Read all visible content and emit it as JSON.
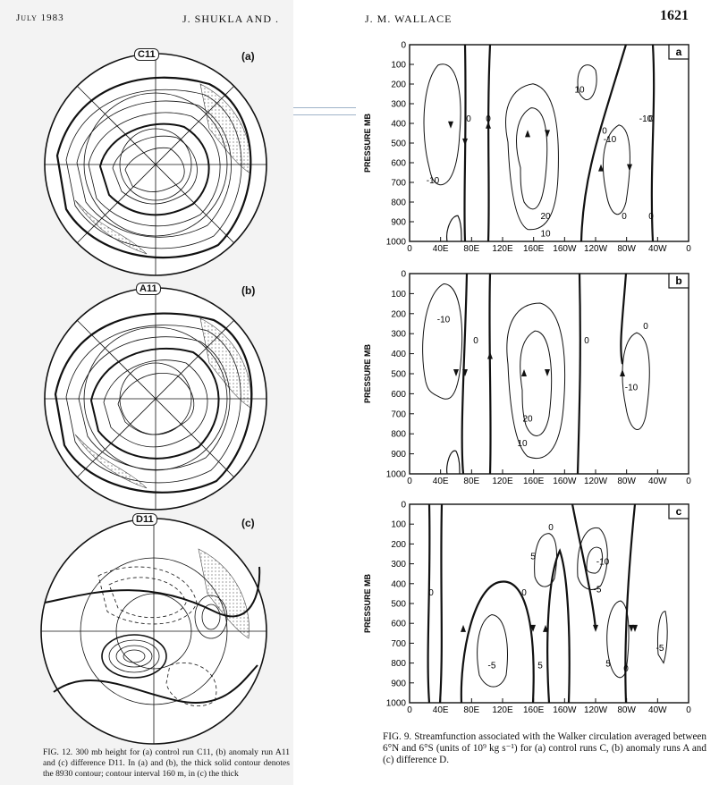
{
  "header": {
    "left_month": "July 1983",
    "left_authors": "J. SHUKLA AND .",
    "right_authors": "J. M. WALLACE",
    "page_number": "1621"
  },
  "maps": [
    {
      "panel": "(a)",
      "label": "C11"
    },
    {
      "panel": "(b)",
      "label": "A11"
    },
    {
      "panel": "(c)",
      "label": "D11"
    }
  ],
  "caption_left": "FIG. 12. 300 mb height for (a) control run C11, (b) anomaly run A11 and (c) difference D11. In (a) and (b), the thick solid contour denotes the 8930 contour; contour interval 160 m, in (c) the thick",
  "caption_right": "FIG. 9. Streamfunction associated with the Walker circulation averaged between 6°N and 6°S (units of 10⁹ kg s⁻¹) for (a) control runs C, (b) anomaly runs A and (c) difference D.",
  "chart_data": [
    {
      "type": "contour",
      "panel": "a",
      "ylabel": "PRESSURE MB",
      "x_ticks": [
        "0",
        "40E",
        "80E",
        "120E",
        "160E",
        "160W",
        "120W",
        "80W",
        "40W",
        "0"
      ],
      "y_ticks": [
        "0",
        "100",
        "200",
        "300",
        "400",
        "500",
        "600",
        "700",
        "800",
        "900",
        "1000"
      ],
      "contour_labels": [
        "0",
        "-10",
        "0",
        "20",
        "10",
        "10",
        "0",
        "-10",
        "0",
        "-10",
        "0",
        "0"
      ]
    },
    {
      "type": "contour",
      "panel": "b",
      "ylabel": "PRESSURE MB",
      "x_ticks": [
        "0",
        "40E",
        "80E",
        "120E",
        "160E",
        "160W",
        "120W",
        "80W",
        "40W",
        "0"
      ],
      "y_ticks": [
        "0",
        "100",
        "200",
        "300",
        "400",
        "500",
        "600",
        "700",
        "800",
        "900",
        "1000"
      ],
      "contour_labels": [
        "-10",
        "0",
        "20",
        "10",
        "0",
        "0",
        "-10"
      ]
    },
    {
      "type": "contour",
      "panel": "c",
      "ylabel": "PRESSURE MB",
      "x_ticks": [
        "0",
        "40E",
        "80E",
        "120E",
        "160E",
        "160W",
        "120W",
        "80W",
        "40W",
        "0"
      ],
      "y_ticks": [
        "0",
        "100",
        "200",
        "300",
        "400",
        "500",
        "600",
        "700",
        "800",
        "900",
        "1000"
      ],
      "contour_labels": [
        "0",
        "5",
        "0",
        "-5",
        "5",
        "0",
        "-10",
        "-5",
        "5",
        "0",
        "-5"
      ]
    }
  ]
}
